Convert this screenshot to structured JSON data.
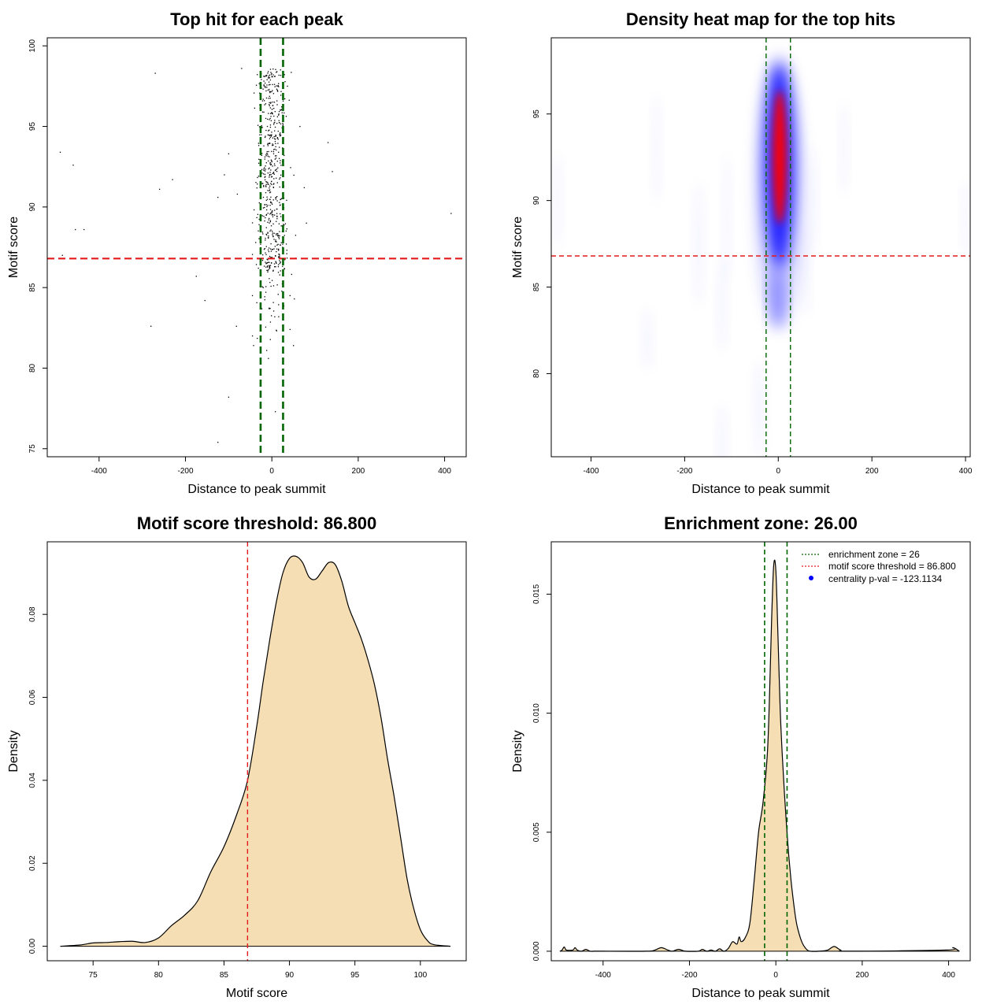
{
  "colors": {
    "threshold_red": "#e41a1c",
    "zone_green": "#006400",
    "fill_wheat": "#f5deb3",
    "heat_blue": "#0000ff",
    "heat_red": "#ff0000",
    "point": "#000000"
  },
  "chart_data": [
    {
      "type": "scatter",
      "title": "Top hit for each peak",
      "xlabel": "Distance to peak summit",
      "ylabel": "Motif score",
      "xlim": [
        -520,
        450
      ],
      "ylim": [
        74.5,
        100.5
      ],
      "xticks": [
        -400,
        -200,
        0,
        200,
        400
      ],
      "yticks": [
        75,
        80,
        85,
        90,
        95,
        100
      ],
      "hline": 86.8,
      "vlines": [
        -26,
        26
      ],
      "points": [
        [
          -490,
          93.4
        ],
        [
          -460,
          92.6
        ],
        [
          -455,
          88.6
        ],
        [
          -435,
          88.6
        ],
        [
          -485,
          87.0
        ],
        [
          -270,
          98.3
        ],
        [
          -260,
          91.1
        ],
        [
          -230,
          91.7
        ],
        [
          -175,
          85.7
        ],
        [
          -155,
          84.2
        ],
        [
          -280,
          82.6
        ],
        [
          -125,
          90.6
        ],
        [
          -110,
          92.0
        ],
        [
          -100,
          93.3
        ],
        [
          -80,
          90.8
        ],
        [
          -70,
          98.6
        ],
        [
          -100,
          78.2
        ],
        [
          -125,
          75.4
        ],
        [
          -82,
          82.6
        ],
        [
          -45,
          82.0
        ],
        [
          -12,
          81.1
        ],
        [
          -8,
          80.6
        ],
        [
          8,
          77.3
        ],
        [
          50,
          81.4
        ],
        [
          42,
          82.4
        ],
        [
          75,
          91.2
        ],
        [
          80,
          89.0
        ],
        [
          65,
          95.0
        ],
        [
          130,
          94.0
        ],
        [
          140,
          92.2
        ],
        [
          415,
          89.6
        ],
        [
          42,
          84.5
        ],
        [
          52,
          84.3
        ],
        [
          -20,
          85.0
        ],
        [
          -45,
          84.5
        ]
      ],
      "cluster": {
        "x_center": 0,
        "x_sd": 17,
        "y_min": 86.0,
        "y_max": 98.6,
        "count": 560,
        "tail_count": 45,
        "tail_y_min": 81.0,
        "tail_y_max": 86.8
      }
    },
    {
      "type": "heatmap",
      "title": "Density heat map for the top hits",
      "xlabel": "Distance to peak summit",
      "ylabel": "Motif score",
      "xlim": [
        -485,
        410
      ],
      "ylim": [
        75.2,
        99.4
      ],
      "xticks": [
        -400,
        -200,
        0,
        200,
        400
      ],
      "yticks": [
        80,
        85,
        90,
        95
      ],
      "hline": 86.8,
      "vlines": [
        -26,
        26
      ]
    },
    {
      "type": "area",
      "title": "Motif score threshold: 86.800",
      "xlabel": "Motif score",
      "ylabel": "Density",
      "xlim": [
        71.5,
        103.5
      ],
      "ylim": [
        -0.0035,
        0.0975
      ],
      "xticks": [
        75,
        80,
        85,
        90,
        95,
        100
      ],
      "yticks": [
        "0.00",
        "0.02",
        "0.04",
        "0.06",
        "0.08"
      ],
      "ytick_values": [
        0,
        0.02,
        0.04,
        0.06,
        0.08
      ],
      "vline": 86.8,
      "x": [
        72.5,
        74,
        75,
        76,
        77,
        78,
        79,
        80,
        81,
        82,
        83,
        84,
        85,
        86,
        86.8,
        87.5,
        88,
        88.5,
        89,
        89.5,
        90,
        90.5,
        91,
        91.5,
        92,
        92.5,
        93,
        93.5,
        94,
        94.5,
        95,
        95.5,
        96,
        96.5,
        97,
        97.5,
        98,
        98.5,
        99,
        99.5,
        100,
        100.5,
        101,
        102.3
      ],
      "y": [
        0.0,
        0.0003,
        0.0008,
        0.0009,
        0.0011,
        0.0012,
        0.0009,
        0.002,
        0.005,
        0.0075,
        0.011,
        0.018,
        0.024,
        0.032,
        0.04,
        0.053,
        0.064,
        0.074,
        0.083,
        0.09,
        0.0935,
        0.094,
        0.0925,
        0.089,
        0.0885,
        0.0905,
        0.0925,
        0.092,
        0.088,
        0.082,
        0.078,
        0.074,
        0.069,
        0.063,
        0.055,
        0.045,
        0.036,
        0.026,
        0.016,
        0.009,
        0.004,
        0.0015,
        0.0004,
        0.0
      ]
    },
    {
      "type": "area",
      "title": "Enrichment zone: 26.00",
      "xlabel": "Distance to peak summit",
      "ylabel": "Density",
      "xlim": [
        -520,
        450
      ],
      "ylim": [
        -0.0004,
        0.0172
      ],
      "xticks": [
        -400,
        -200,
        0,
        200,
        400
      ],
      "yticks": [
        "0.000",
        "0.005",
        "0.010",
        "0.015"
      ],
      "ytick_values": [
        0,
        0.005,
        0.01,
        0.015
      ],
      "vlines": [
        -26,
        26
      ],
      "legend": [
        {
          "label": "enrichment zone = 26",
          "style": "dotted",
          "color": "#006400"
        },
        {
          "label": "motif score threshold = 86.800",
          "style": "dotted",
          "color": "#e41a1c"
        },
        {
          "label": "centrality p-val = -123.1134",
          "style": "point",
          "color": "#0000ff"
        }
      ],
      "legend_position": "top-right",
      "x": [
        -500,
        -495,
        -490,
        -485,
        -470,
        -465,
        -460,
        -450,
        -440,
        -430,
        -420,
        -410,
        -300,
        -280,
        -265,
        -250,
        -240,
        -225,
        -210,
        -180,
        -170,
        -160,
        -150,
        -140,
        -130,
        -120,
        -110,
        -100,
        -90,
        -85,
        -80,
        -70,
        -60,
        -50,
        -40,
        -30,
        -20,
        -15,
        -10,
        -5,
        0,
        5,
        10,
        15,
        20,
        25,
        30,
        35,
        40,
        45,
        50,
        60,
        70,
        80,
        100,
        120,
        135,
        150,
        170,
        395,
        410,
        425
      ],
      "y": [
        0.0,
        5e-05,
        0.00018,
        5e-05,
        5e-05,
        0.00015,
        5e-05,
        0.0,
        8e-05,
        0.0,
        0.0,
        0.0,
        0.0,
        5e-05,
        0.00015,
        5e-05,
        0.0,
        8e-05,
        0.0,
        0.0,
        8e-05,
        0.0,
        5e-05,
        0.0,
        0.0001,
        0.0,
        0.00012,
        0.0004,
        0.0003,
        0.0006,
        0.0004,
        0.0006,
        0.0012,
        0.003,
        0.005,
        0.0062,
        0.0082,
        0.0105,
        0.0138,
        0.0162,
        0.016,
        0.0132,
        0.0102,
        0.0082,
        0.0066,
        0.0052,
        0.004,
        0.003,
        0.0022,
        0.0015,
        0.001,
        0.0004,
        0.0001,
        0.0,
        0.0,
        5e-05,
        0.0002,
        5e-05,
        0.0,
        5e-05,
        0.00015,
        0.0
      ]
    }
  ]
}
